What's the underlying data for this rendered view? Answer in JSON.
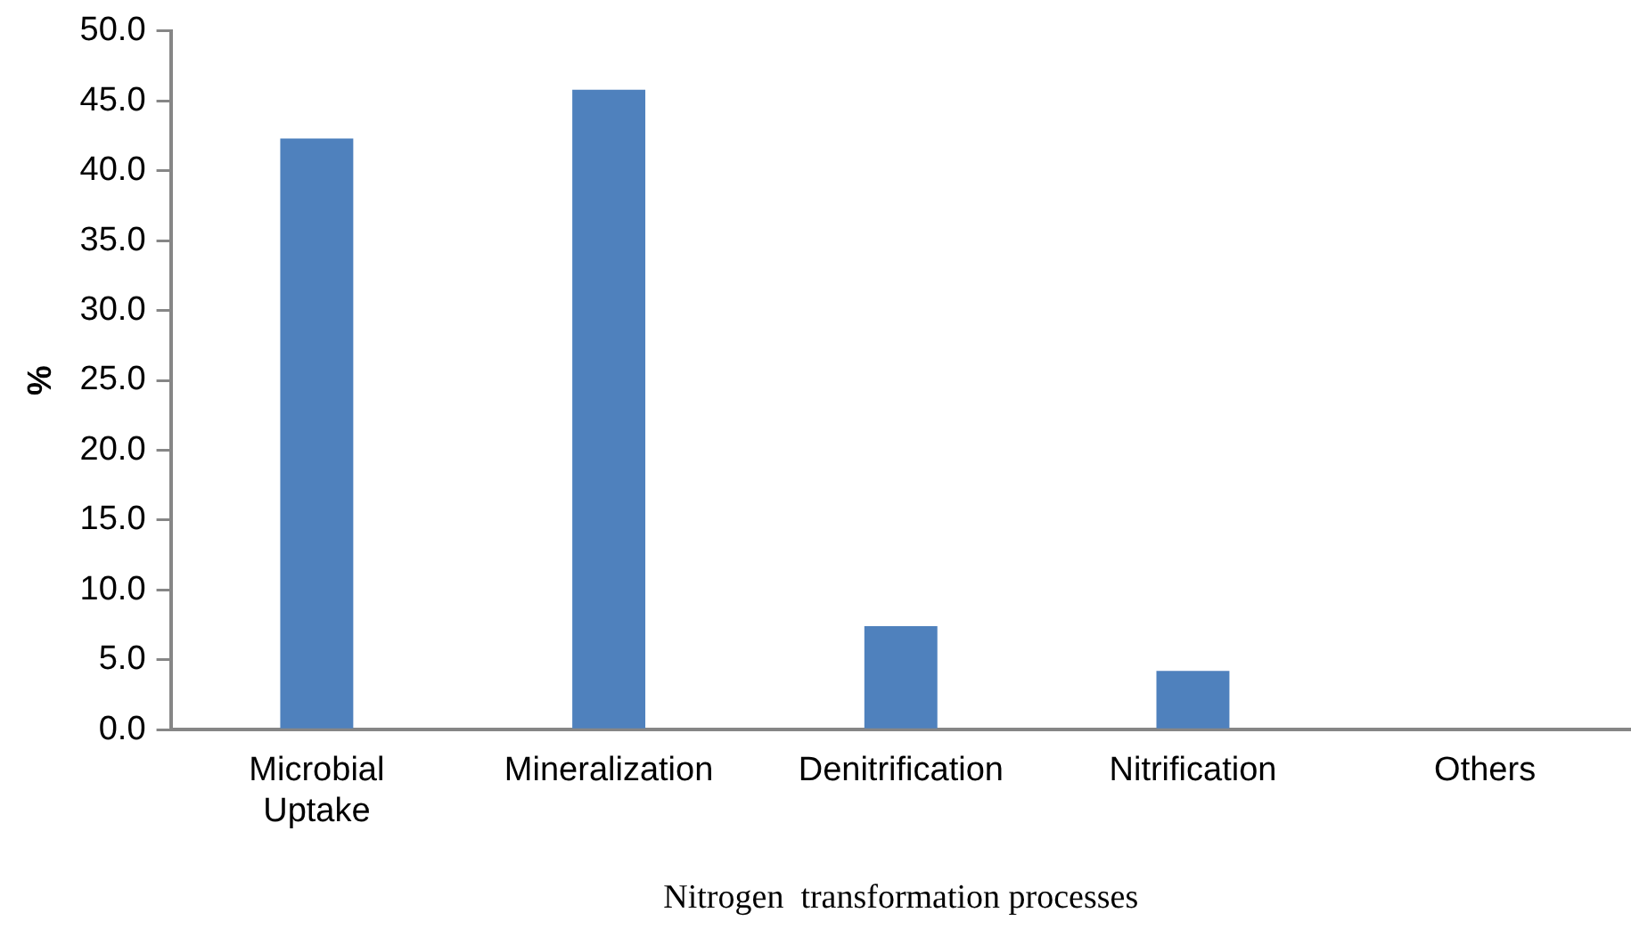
{
  "chart_data": {
    "type": "bar",
    "xlabel": "Nitrogen  transformation processes",
    "ylabel": "%",
    "categories": [
      "Microbial Uptake",
      "Mineralization",
      "Denitrification",
      "Nitrification",
      "Others"
    ],
    "values": [
      42.3,
      45.8,
      7.4,
      4.2,
      0
    ],
    "color": "#4f81bd",
    "ylim": [
      0,
      50
    ],
    "yticks": [
      {
        "value": 0,
        "label": "0.0"
      },
      {
        "value": 5,
        "label": "5.0"
      },
      {
        "value": 10,
        "label": "10.0"
      },
      {
        "value": 15,
        "label": "15.0"
      },
      {
        "value": 20,
        "label": "20.0"
      },
      {
        "value": 25,
        "label": "25.0"
      },
      {
        "value": 30,
        "label": "30.0"
      },
      {
        "value": 35,
        "label": "35.0"
      },
      {
        "value": 40,
        "label": "40.0"
      },
      {
        "value": 45,
        "label": "45.0"
      },
      {
        "value": 50,
        "label": "50.0"
      }
    ],
    "grid": false,
    "legend": false
  }
}
